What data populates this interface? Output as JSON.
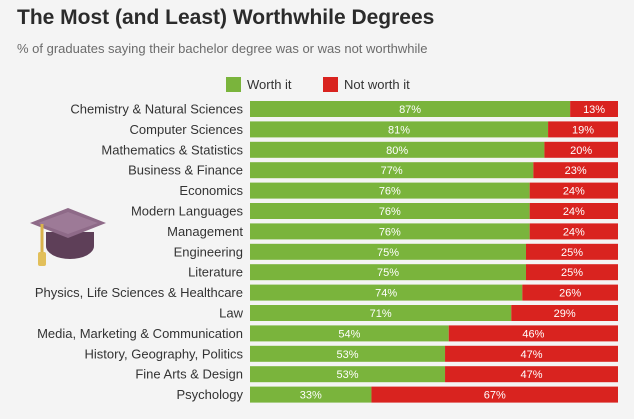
{
  "chart_data": {
    "type": "bar",
    "orientation": "horizontal",
    "stacked": true,
    "title": "The Most (and Least) Worthwhile Degrees",
    "subtitle": "% of graduates saying their bachelor degree was or was not worthwhile",
    "categories": [
      "Chemistry & Natural Sciences",
      "Computer Sciences",
      "Mathematics & Statistics",
      "Business & Finance",
      "Economics",
      "Modern Languages",
      "Management",
      "Engineering",
      "Literature",
      "Physics, Life Sciences & Healthcare",
      "Law",
      "Media, Marketing & Communication",
      "History, Geography, Politics",
      "Fine Arts & Design",
      "Psychology"
    ],
    "series": [
      {
        "name": "Worth it",
        "color": "#7ab43c",
        "values": [
          87,
          81,
          80,
          77,
          76,
          76,
          76,
          75,
          75,
          74,
          71,
          54,
          53,
          53,
          33
        ],
        "labels": [
          "87%",
          "81%",
          "80%",
          "77%",
          "76%",
          "76%",
          "76%",
          "75%",
          "75%",
          "74%",
          "71%",
          "54%",
          "53%",
          "53%",
          "33%"
        ]
      },
      {
        "name": "Not worth it",
        "color": "#d9231f",
        "values": [
          13,
          19,
          20,
          23,
          24,
          24,
          24,
          25,
          25,
          26,
          29,
          46,
          47,
          47,
          67
        ],
        "labels": [
          "13%",
          "19%",
          "20%",
          "23%",
          "24%",
          "24%",
          "24%",
          "25%",
          "25%",
          "26%",
          "29%",
          "46%",
          "47%",
          "47%",
          "67%"
        ]
      }
    ],
    "xlim": [
      0,
      100
    ],
    "grid": false,
    "legend": "top",
    "icon": "graduation-cap-icon"
  }
}
